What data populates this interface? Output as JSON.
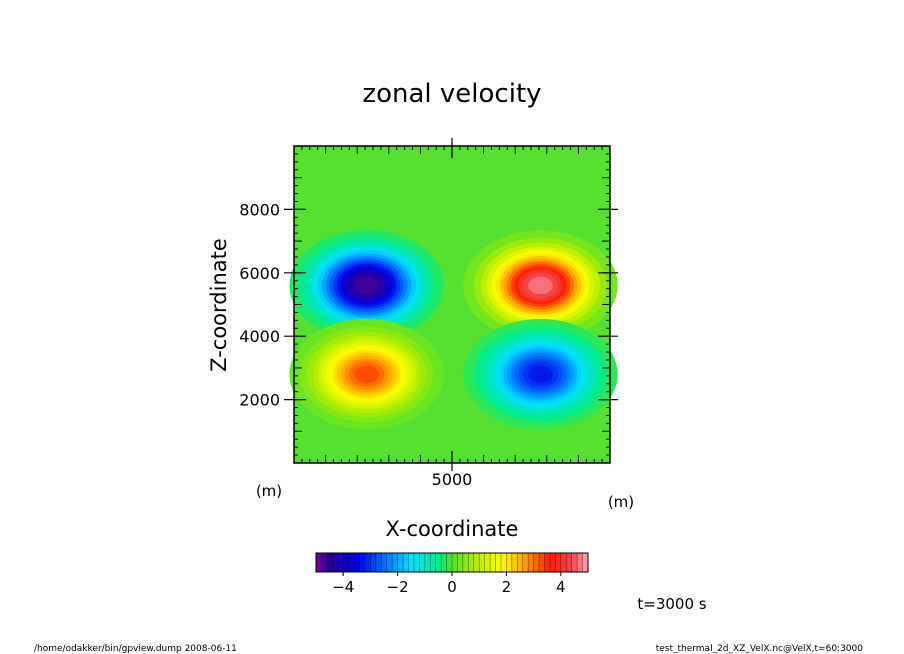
{
  "chart_data": {
    "type": "heatmap",
    "title": "zonal velocity",
    "xlabel": "X-coordinate",
    "ylabel": "Z-coordinate",
    "x_unit": "(m)",
    "y_unit": "(m)",
    "xlim": [
      0,
      10000
    ],
    "ylim": [
      0,
      10000
    ],
    "x_ticks": [
      {
        "value": 5000,
        "label": "5000"
      }
    ],
    "y_ticks": [
      {
        "value": 2000,
        "label": "2000"
      },
      {
        "value": 4000,
        "label": "4000"
      },
      {
        "value": 6000,
        "label": "6000"
      },
      {
        "value": 8000,
        "label": "8000"
      }
    ],
    "field_features": [
      {
        "x": 2300,
        "z": 5600,
        "value": -5.0
      },
      {
        "x": 7800,
        "z": 5600,
        "value": 5.0
      },
      {
        "x": 2300,
        "z": 2800,
        "value": 3.5
      },
      {
        "x": 7800,
        "z": 2800,
        "value": -3.5
      }
    ],
    "colorbar": {
      "min": -5,
      "max": 5,
      "ticks": [
        {
          "value": -4,
          "label": "−4"
        },
        {
          "value": -2,
          "label": "−2"
        },
        {
          "value": 0,
          "label": "0"
        },
        {
          "value": 2,
          "label": "2"
        },
        {
          "value": 4,
          "label": "4"
        }
      ]
    }
  },
  "annotations": {
    "time": "t=3000  s",
    "footer_left": "/home/odakker/bin/gpview.dump  2008-06-11",
    "footer_right": "test_thermal_2d_XZ_VelX.nc@VelX,t=60:3000"
  }
}
